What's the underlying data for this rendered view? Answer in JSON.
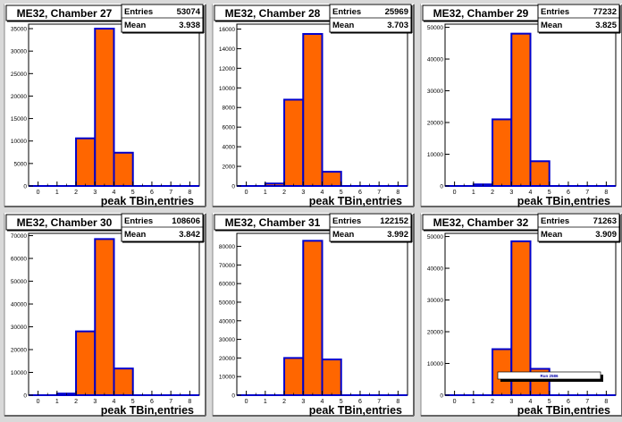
{
  "chart_data": [
    {
      "type": "bar",
      "title": "ME32, Chamber 27",
      "xlabel": "peak TBin,entries",
      "stats": {
        "entries_label": "Entries",
        "entries": "53074",
        "mean_label": "Mean",
        "mean": "3.938"
      },
      "x_ticks": [
        "0",
        "1",
        "2",
        "3",
        "4",
        "5",
        "6",
        "7",
        "8"
      ],
      "y_ticks": [
        "0",
        "5000",
        "10000",
        "15000",
        "20000",
        "25000",
        "30000",
        "35000"
      ],
      "ylim": [
        0,
        36000
      ],
      "bins": [
        2.5,
        3.5,
        4.5
      ],
      "values": [
        10600,
        35000,
        7400
      ]
    },
    {
      "type": "bar",
      "title": "ME32, Chamber 28",
      "xlabel": "peak TBin,entries",
      "stats": {
        "entries_label": "Entries",
        "entries": "25969",
        "mean_label": "Mean",
        "mean": "3.703"
      },
      "x_ticks": [
        "0",
        "1",
        "2",
        "3",
        "4",
        "5",
        "6",
        "7",
        "8"
      ],
      "y_ticks": [
        "0",
        "2000",
        "4000",
        "6000",
        "8000",
        "10000",
        "12000",
        "14000",
        "16000"
      ],
      "ylim": [
        0,
        16500
      ],
      "bins": [
        1.5,
        2.5,
        3.5,
        4.5
      ],
      "values": [
        250,
        8800,
        15500,
        1450
      ]
    },
    {
      "type": "bar",
      "title": "ME32, Chamber 29",
      "xlabel": "peak TBin,entries",
      "stats": {
        "entries_label": "Entries",
        "entries": "77232",
        "mean_label": "Mean",
        "mean": "3.825"
      },
      "x_ticks": [
        "0",
        "1",
        "2",
        "3",
        "4",
        "5",
        "6",
        "7",
        "8"
      ],
      "y_ticks": [
        "0",
        "10000",
        "20000",
        "30000",
        "40000",
        "50000"
      ],
      "ylim": [
        0,
        51000
      ],
      "bins": [
        1.5,
        2.5,
        3.5,
        4.5
      ],
      "values": [
        500,
        21000,
        48000,
        7800
      ]
    },
    {
      "type": "bar",
      "title": "ME32, Chamber 30",
      "xlabel": "peak TBin,entries",
      "stats": {
        "entries_label": "Entries",
        "entries": "108606",
        "mean_label": "Mean",
        "mean": "3.842"
      },
      "x_ticks": [
        "0",
        "1",
        "2",
        "3",
        "4",
        "5",
        "6",
        "7",
        "8"
      ],
      "y_ticks": [
        "0",
        "10000",
        "20000",
        "30000",
        "40000",
        "50000",
        "60000",
        "70000"
      ],
      "ylim": [
        0,
        71000
      ],
      "bins": [
        1.5,
        2.5,
        3.5,
        4.5
      ],
      "values": [
        700,
        28000,
        68500,
        11700
      ]
    },
    {
      "type": "bar",
      "title": "ME32, Chamber 31",
      "xlabel": "peak TBin,entries",
      "stats": {
        "entries_label": "Entries",
        "entries": "122152",
        "mean_label": "Mean",
        "mean": "3.992"
      },
      "x_ticks": [
        "0",
        "1",
        "2",
        "3",
        "4",
        "5",
        "6",
        "7",
        "8"
      ],
      "y_ticks": [
        "0",
        "10000",
        "20000",
        "30000",
        "40000",
        "50000",
        "60000",
        "70000",
        "80000"
      ],
      "ylim": [
        0,
        87000
      ],
      "bins": [
        2.5,
        3.5,
        4.5
      ],
      "values": [
        20000,
        83000,
        19200
      ]
    },
    {
      "type": "bar",
      "title": "ME32, Chamber 32",
      "xlabel": "peak TBin,entries",
      "stats": {
        "entries_label": "Entries",
        "entries": "71263",
        "mean_label": "Mean",
        "mean": "3.909"
      },
      "x_ticks": [
        "0",
        "1",
        "2",
        "3",
        "4",
        "5",
        "6",
        "7",
        "8"
      ],
      "y_ticks": [
        "0",
        "10000",
        "20000",
        "30000",
        "40000",
        "50000"
      ],
      "ylim": [
        0,
        51000
      ],
      "bins": [
        2.5,
        3.5,
        4.5
      ],
      "values": [
        14500,
        48500,
        8300
      ],
      "annotation": "Run 2586"
    }
  ],
  "colors": {
    "background": "#d9d9d9",
    "frame": "#ffffff",
    "bar_fill": "#ff6600",
    "bar_line": "#0000cc",
    "text": "#000000"
  }
}
